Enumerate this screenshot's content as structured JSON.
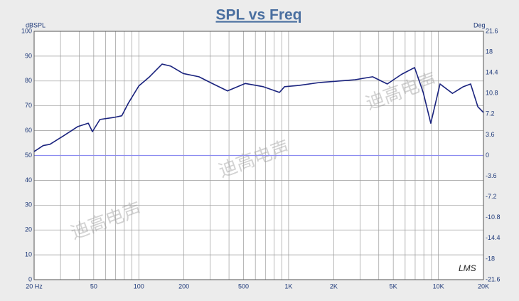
{
  "chart_data": {
    "type": "line",
    "title": "SPL vs Freq",
    "ylabel": "dBSPL",
    "y2label": "Deg",
    "logo": "LMS",
    "watermarks": [
      "迪高电声",
      "迪高电声",
      "迪高电声"
    ],
    "xscale": "log",
    "grid": true,
    "xlim": [
      20,
      20000
    ],
    "xticks": [
      {
        "value": 20,
        "label": "20 Hz"
      },
      50,
      100,
      200,
      500,
      {
        "value": 1000,
        "label": "1K"
      },
      {
        "value": 2000,
        "label": "2K"
      },
      {
        "value": 5000,
        "label": "5K"
      },
      {
        "value": 10000,
        "label": "10K"
      },
      {
        "value": 20000,
        "label": "20K"
      }
    ],
    "x_grid": [
      20,
      30,
      40,
      50,
      60,
      70,
      80,
      90,
      100,
      200,
      300,
      400,
      500,
      600,
      700,
      800,
      900,
      1000,
      2000,
      3000,
      4000,
      5000,
      6000,
      7000,
      8000,
      9000,
      10000,
      20000
    ],
    "ylim": [
      0,
      100
    ],
    "yticks": [
      0,
      10,
      20,
      30,
      40,
      50,
      60,
      70,
      80,
      90,
      100
    ],
    "y2lim": [
      -21.6,
      21.6
    ],
    "y2ticks": [
      -21.6,
      -18,
      -14.4,
      -10.8,
      -7.2,
      -3.6,
      0,
      3.6,
      7.2,
      10.8,
      14.4,
      18,
      21.6
    ],
    "zero_line_color": "#8c8cf0",
    "x": [
      20,
      23,
      25.5,
      31.6,
      39,
      46,
      49,
      55,
      68,
      77,
      85,
      100,
      118,
      143,
      163,
      198,
      252,
      314,
      391,
      514,
      678,
      869,
      940,
      1170,
      1620,
      2780,
      3640,
      4560,
      5690,
      6940,
      7920,
      8900,
      10260,
      12420,
      14670,
      16420,
      18360,
      20000
    ],
    "series": [
      {
        "name": "SPL",
        "color": "#1a237e",
        "values": [
          51.6,
          54,
          54.5,
          58,
          61.6,
          63,
          59.6,
          64.5,
          65.3,
          66,
          71,
          78,
          81.7,
          86.8,
          86,
          83,
          81.7,
          78.8,
          76,
          79,
          77.7,
          75.4,
          77.7,
          78.2,
          79.4,
          80.5,
          81.7,
          78.8,
          82.7,
          85.4,
          75.4,
          63,
          78.8,
          75,
          77.7,
          78.8,
          69.6,
          67.3
        ]
      }
    ]
  }
}
